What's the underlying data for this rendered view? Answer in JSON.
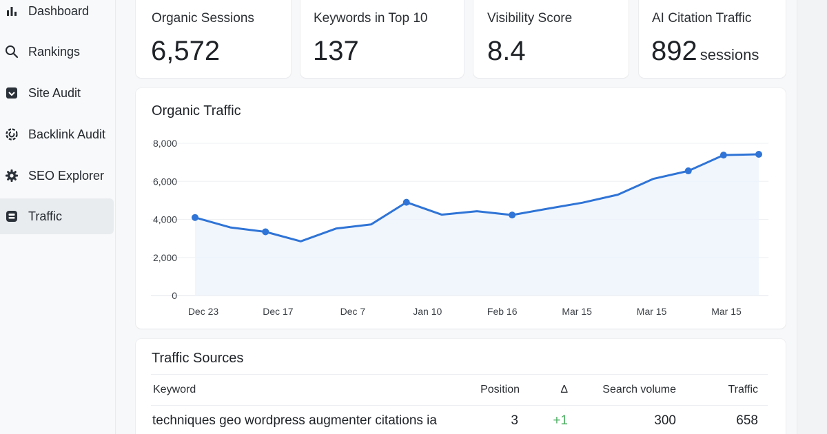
{
  "sidebar": {
    "items": [
      {
        "label": "Dashboard",
        "icon": "bar-chart-icon",
        "active": false
      },
      {
        "label": "Rankings",
        "icon": "search-icon",
        "active": false
      },
      {
        "label": "Site Audit",
        "icon": "checkbox-icon",
        "active": false
      },
      {
        "label": "Backlink Audit",
        "icon": "backlink-icon",
        "active": false
      },
      {
        "label": "SEO Explorer",
        "icon": "gear-icon",
        "active": false
      },
      {
        "label": "Traffic",
        "icon": "robot-icon",
        "active": true
      }
    ]
  },
  "kpis": [
    {
      "label": "Organic Sessions",
      "value": "6,572",
      "unit": ""
    },
    {
      "label": "Keywords in Top 10",
      "value": "137",
      "unit": ""
    },
    {
      "label": "Visibility Score",
      "value": "8.4",
      "unit": ""
    },
    {
      "label": "AI Citation Traffic",
      "value": "892",
      "unit": "sessions"
    }
  ],
  "traffic_chart": {
    "title": "Organic Traffic"
  },
  "chart_data": {
    "type": "area",
    "title": "Organic Traffic",
    "xlabel": "",
    "ylabel": "",
    "ylim": [
      0,
      8000
    ],
    "yticks": [
      0,
      2000,
      4000,
      6000,
      8000
    ],
    "ytick_labels": [
      "0",
      "2,000",
      "4,000",
      "6,000",
      "8,000"
    ],
    "xtick_labels": [
      "Dec 23",
      "Dec 17",
      "Dec 7",
      "Jan 10",
      "Feb 16",
      "Mar 15",
      "Mar 15",
      "Mar 15"
    ],
    "grid": true,
    "line_color": "#2f74d6",
    "values": [
      4100,
      3580,
      3350,
      2850,
      3520,
      3740,
      4900,
      4250,
      4430,
      4230,
      4560,
      4880,
      5300,
      6130,
      6550,
      7380,
      7420
    ],
    "markers": [
      0,
      2,
      6,
      9,
      14,
      15,
      16
    ]
  },
  "sources": {
    "title": "Traffic Sources",
    "columns": [
      "Keyword",
      "Position",
      "Δ",
      "Search volume",
      "Traffic"
    ],
    "rows": [
      {
        "keyword": "techniques geo wordpress augmenter citations ia",
        "position": "3",
        "delta": "+1",
        "volume": "300",
        "traffic": "658"
      }
    ]
  },
  "colors": {
    "accent": "#2f74d6",
    "positive": "#4caf62"
  }
}
